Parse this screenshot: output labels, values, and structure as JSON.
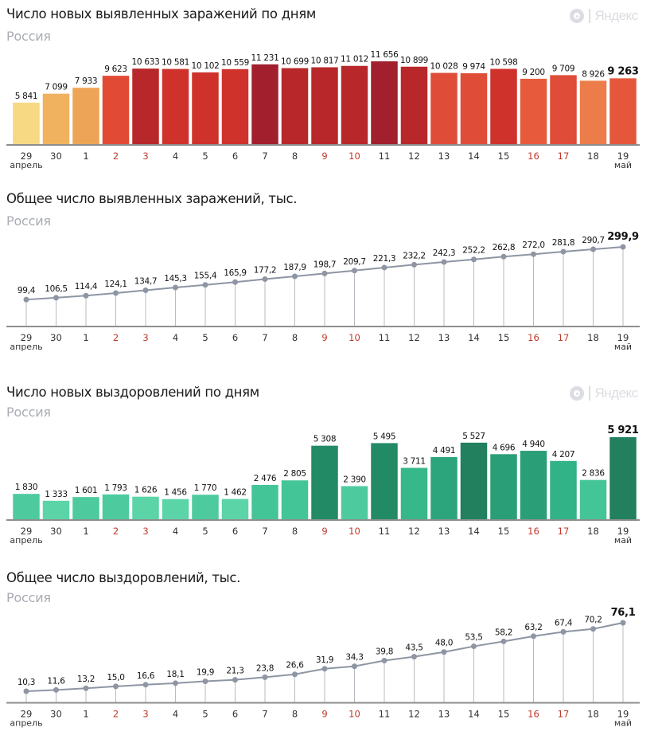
{
  "brand": {
    "logo_text": "Яндекс",
    "logo_icon": "yandex-logo-icon"
  },
  "colors": {
    "weekend_label": "#c0392b",
    "weekday_label": "#333333",
    "line": "#8e95a3",
    "axis": "#8e8e8e"
  },
  "chart_data": [
    {
      "id": "new_cases",
      "type": "bar",
      "title": "Число новых выявленных заражений по дням",
      "subtitle": "Россия",
      "categories": [
        "29",
        "30",
        "1",
        "2",
        "3",
        "4",
        "5",
        "6",
        "7",
        "8",
        "9",
        "10",
        "11",
        "12",
        "13",
        "14",
        "15",
        "16",
        "17",
        "18",
        "19"
      ],
      "month_labels": {
        "0": "апрель",
        "20": "май"
      },
      "weekend_indices": [
        3,
        4,
        10,
        11,
        17,
        18
      ],
      "values": [
        5841,
        7099,
        7933,
        9623,
        10633,
        10581,
        10102,
        10559,
        11231,
        10699,
        10817,
        11012,
        11656,
        10899,
        10028,
        9974,
        10598,
        9200,
        9709,
        8926,
        9263
      ],
      "value_labels": [
        "5 841",
        "7 099",
        "7 933",
        "9 623",
        "10 633",
        "10 581",
        "10 102",
        "10 559",
        "11 231",
        "10 699",
        "10 817",
        "11 012",
        "11 656",
        "10 899",
        "10 028",
        "9 974",
        "10 598",
        "9 200",
        "9 709",
        "8 926",
        "9 263"
      ],
      "bar_colors": [
        "#f7d883",
        "#f0b25f",
        "#eea457",
        "#e14b36",
        "#b8282b",
        "#cf322b",
        "#cf322b",
        "#cf322b",
        "#a21f2d",
        "#b8282b",
        "#b8282b",
        "#b8282b",
        "#a21f2d",
        "#b8282b",
        "#df4c38",
        "#df4c38",
        "#cf322b",
        "#e75b3c",
        "#df4c38",
        "#ec7d4b",
        "#e5573b"
      ],
      "highlight_last": true,
      "ylim": [
        0,
        11656
      ],
      "xlabel": "",
      "ylabel": "",
      "grid": false,
      "legend": "none"
    },
    {
      "id": "total_cases",
      "type": "line",
      "title": "Общее число выявленных заражений, тыс.",
      "subtitle": "Россия",
      "categories": [
        "29",
        "30",
        "1",
        "2",
        "3",
        "4",
        "5",
        "6",
        "7",
        "8",
        "9",
        "10",
        "11",
        "12",
        "13",
        "14",
        "15",
        "16",
        "17",
        "18",
        "19"
      ],
      "month_labels": {
        "0": "апрель",
        "20": "май"
      },
      "weekend_indices": [
        3,
        4,
        10,
        11,
        17,
        18
      ],
      "values": [
        99.4,
        106.5,
        114.4,
        124.1,
        134.7,
        145.3,
        155.4,
        165.9,
        177.2,
        187.9,
        198.7,
        209.7,
        221.3,
        232.2,
        242.3,
        252.2,
        262.8,
        272.0,
        281.8,
        290.7,
        299.9
      ],
      "value_labels": [
        "99,4",
        "106,5",
        "114,4",
        "124,1",
        "134,7",
        "145,3",
        "155,4",
        "165,9",
        "177,2",
        "187,9",
        "198,7",
        "209,7",
        "221,3",
        "232,2",
        "242,3",
        "252,2",
        "262,8",
        "272,0",
        "281,8",
        "290,7",
        "299,9"
      ],
      "highlight_last": true,
      "ylim": [
        0,
        299.9
      ],
      "xlabel": "",
      "ylabel": "тыс.",
      "grid": false,
      "legend": "none"
    },
    {
      "id": "new_recoveries",
      "type": "bar",
      "title": "Число новых выздоровлений по дням",
      "subtitle": "Россия",
      "categories": [
        "29",
        "30",
        "1",
        "2",
        "3",
        "4",
        "5",
        "6",
        "7",
        "8",
        "9",
        "10",
        "11",
        "12",
        "13",
        "14",
        "15",
        "16",
        "17",
        "18",
        "19"
      ],
      "month_labels": {
        "0": "апрель",
        "20": "май"
      },
      "weekend_indices": [
        3,
        4,
        10,
        11,
        17,
        18
      ],
      "values": [
        1830,
        1333,
        1601,
        1793,
        1626,
        1456,
        1770,
        1462,
        2476,
        2805,
        5308,
        2390,
        5495,
        3711,
        4491,
        5527,
        4696,
        4940,
        4207,
        2836,
        5921
      ],
      "value_labels": [
        "1 830",
        "1 333",
        "1 601",
        "1 793",
        "1 626",
        "1 456",
        "1 770",
        "1 462",
        "2 476",
        "2 805",
        "5 308",
        "2 390",
        "5 495",
        "3 711",
        "4 491",
        "5 527",
        "4 696",
        "4 940",
        "4 207",
        "2 836",
        "5 921"
      ],
      "bar_colors": [
        "#4ecb9e",
        "#5bd4a8",
        "#4ecb9e",
        "#4ecb9e",
        "#5bd4a8",
        "#5bd4a8",
        "#4ecb9e",
        "#5bd4a8",
        "#44c597",
        "#44c597",
        "#238a66",
        "#4ecb9e",
        "#238a66",
        "#36b88a",
        "#2da57c",
        "#22805f",
        "#2a9e77",
        "#2a9e77",
        "#32b287",
        "#44c597",
        "#22805f"
      ],
      "highlight_last": true,
      "ylim": [
        0,
        5921
      ],
      "xlabel": "",
      "ylabel": "",
      "grid": false,
      "legend": "none"
    },
    {
      "id": "total_recoveries",
      "type": "line",
      "title": "Общее число выздоровлений, тыс.",
      "subtitle": "Россия",
      "categories": [
        "29",
        "30",
        "1",
        "2",
        "3",
        "4",
        "5",
        "6",
        "7",
        "8",
        "9",
        "10",
        "11",
        "12",
        "13",
        "14",
        "15",
        "16",
        "17",
        "18",
        "19"
      ],
      "month_labels": {
        "0": "апрель",
        "20": "май"
      },
      "weekend_indices": [
        3,
        4,
        10,
        11,
        17,
        18
      ],
      "values": [
        10.3,
        11.6,
        13.2,
        15.0,
        16.6,
        18.1,
        19.9,
        21.3,
        23.8,
        26.6,
        31.9,
        34.3,
        39.8,
        43.5,
        48.0,
        53.5,
        58.2,
        63.2,
        67.4,
        70.2,
        76.1
      ],
      "value_labels": [
        "10,3",
        "11,6",
        "13,2",
        "15,0",
        "16,6",
        "18,1",
        "19,9",
        "21,3",
        "23,8",
        "26,6",
        "31,9",
        "34,3",
        "39,8",
        "43,5",
        "48,0",
        "53,5",
        "58,2",
        "63,2",
        "67,4",
        "70,2",
        "76,1"
      ],
      "highlight_last": true,
      "ylim": [
        0,
        76.1
      ],
      "xlabel": "",
      "ylabel": "тыс.",
      "grid": false,
      "legend": "none"
    }
  ]
}
